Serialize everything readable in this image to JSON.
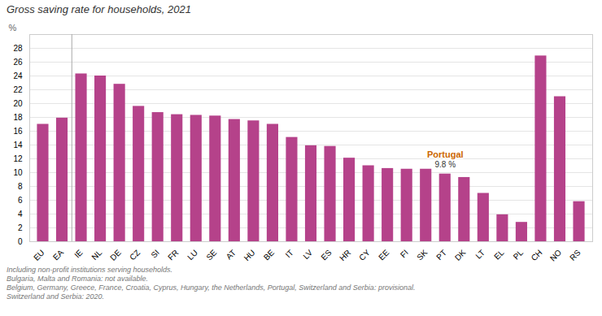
{
  "chart_data": {
    "type": "bar",
    "title": "Gross saving rate for households, 2021",
    "ylabel": "%",
    "color": "#b5428a",
    "categories": [
      "EU",
      "EA",
      "IE",
      "NL",
      "DE",
      "CZ",
      "SI",
      "FR",
      "LU",
      "SE",
      "AT",
      "HU",
      "BE",
      "IT",
      "LV",
      "ES",
      "HR",
      "CY",
      "EE",
      "FI",
      "SK",
      "PT",
      "DK",
      "LT",
      "EL",
      "PL",
      "CH",
      "NO",
      "RS"
    ],
    "values": [
      17.0,
      17.9,
      24.3,
      24.0,
      22.8,
      19.6,
      18.7,
      18.4,
      18.3,
      18.2,
      17.7,
      17.5,
      17.0,
      15.1,
      13.9,
      13.8,
      12.1,
      11.0,
      10.6,
      10.5,
      10.5,
      9.8,
      9.3,
      7.0,
      3.9,
      2.8,
      26.9,
      21.0,
      5.8
    ],
    "ylim": [
      0,
      30
    ],
    "yticks": [
      0,
      2,
      4,
      6,
      8,
      10,
      12,
      14,
      16,
      18,
      20,
      22,
      24,
      26,
      28
    ],
    "grid": true,
    "vline_between": [
      "EA",
      "IE"
    ],
    "annotations": [
      {
        "category": "PT",
        "text": "Portugal",
        "value_label": "9.8 %"
      }
    ],
    "footnotes": [
      "Including non-profit institutions serving households.",
      "Bulgaria, Malta and Romania: not available.",
      "Belgium, Germany, Greece, France, Croatia, Cyprus, Hungary, the Netherlands, Portugal, Switzerland and Serbia: provisional.",
      "Switzerland and Serbia: 2020."
    ]
  }
}
